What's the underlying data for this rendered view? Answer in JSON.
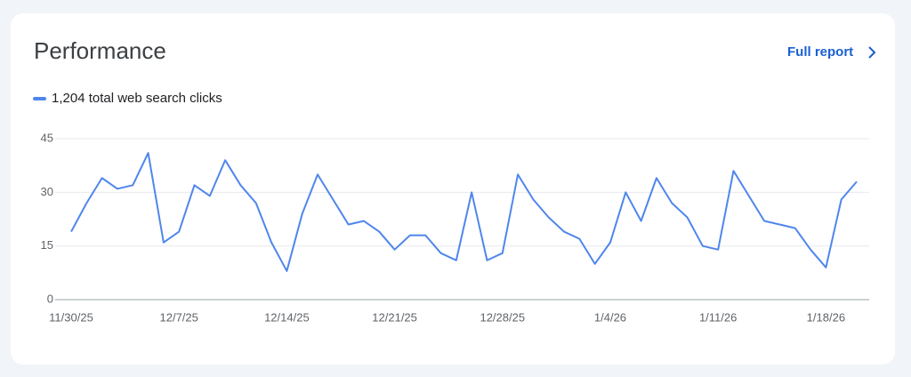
{
  "link": "Full report",
  "chart_data": {
    "type": "line",
    "title": "Performance",
    "categories": [
      "11/30/25",
      null,
      null,
      null,
      null,
      null,
      null,
      "12/7/25",
      null,
      null,
      null,
      null,
      null,
      null,
      "12/14/25",
      null,
      null,
      null,
      null,
      null,
      null,
      "12/21/25",
      null,
      null,
      null,
      null,
      null,
      null,
      "12/28/25",
      null,
      null,
      null,
      null,
      null,
      null,
      "1/4/26",
      null,
      null,
      null,
      null,
      null,
      null,
      "1/11/26",
      null,
      null,
      null,
      null,
      null,
      null,
      "1/18/26",
      null,
      null
    ],
    "series": [
      {
        "name": "1,204 total web search clicks",
        "color": "#4f86ec",
        "values": [
          19,
          27,
          34,
          31,
          32,
          41,
          16,
          19,
          32,
          29,
          39,
          32,
          27,
          16,
          8,
          24,
          35,
          28,
          21,
          22,
          19,
          14,
          18,
          18,
          13,
          11,
          30,
          11,
          13,
          35,
          28,
          23,
          19,
          17,
          10,
          16,
          30,
          22,
          34,
          27,
          23,
          15,
          14,
          36,
          29,
          22,
          21,
          20,
          14,
          9,
          28,
          33
        ]
      }
    ],
    "ylim": [
      0,
      45
    ],
    "yticks": [
      0,
      15,
      30,
      45
    ],
    "grid": true
  }
}
